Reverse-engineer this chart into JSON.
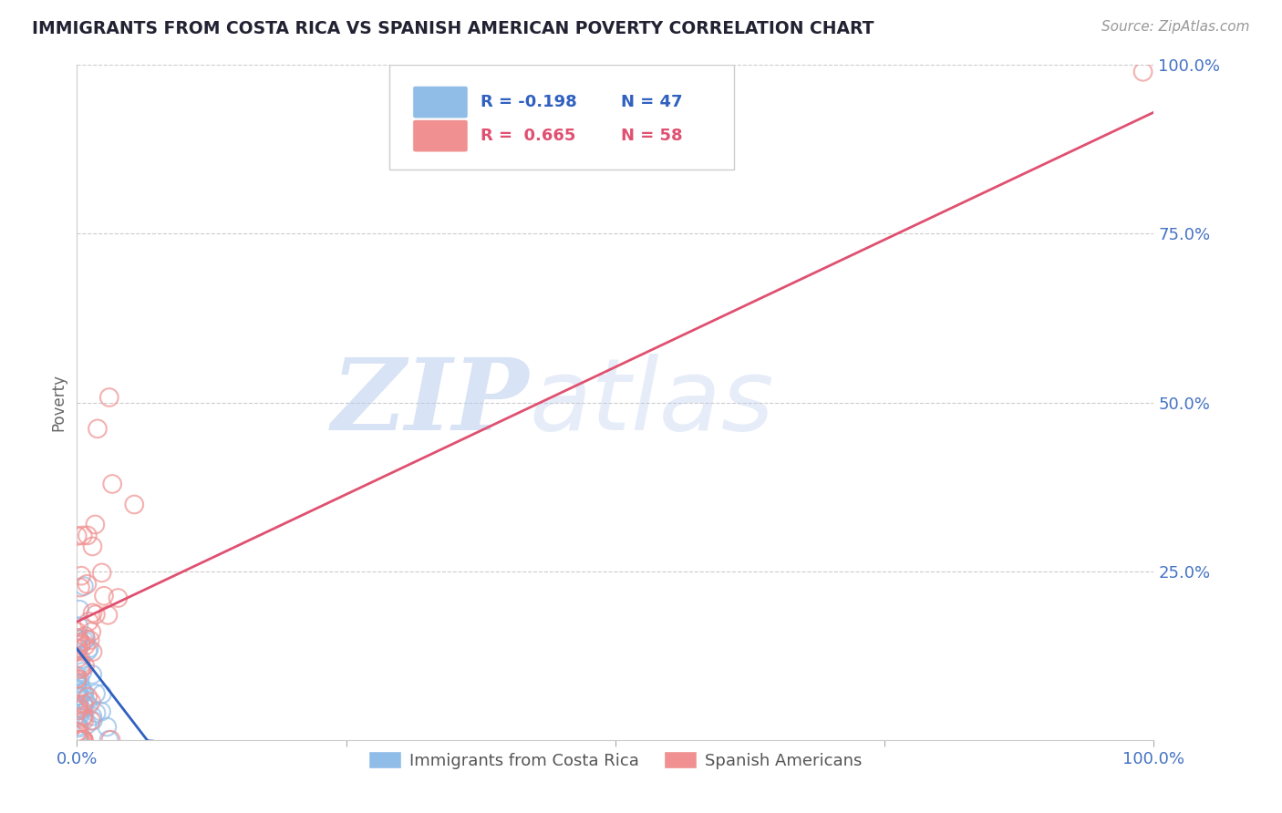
{
  "title": "IMMIGRANTS FROM COSTA RICA VS SPANISH AMERICAN POVERTY CORRELATION CHART",
  "source": "Source: ZipAtlas.com",
  "ylabel": "Poverty",
  "watermark_part1": "ZIP",
  "watermark_part2": "atlas",
  "xlim": [
    0,
    1
  ],
  "ylim": [
    0,
    1
  ],
  "xtick_labels": [
    "0.0%",
    "",
    "",
    "",
    "100.0%"
  ],
  "ytick_labels": [
    "",
    "25.0%",
    "50.0%",
    "75.0%",
    "100.0%"
  ],
  "legend_label1": "Immigrants from Costa Rica",
  "legend_label2": "Spanish Americans",
  "blue_R": -0.198,
  "blue_N": 47,
  "pink_R": 0.665,
  "pink_N": 58,
  "blue_scatter_color": "#90bce8",
  "pink_scatter_color": "#f09090",
  "blue_line_color": "#3060c0",
  "pink_line_color": "#e05070",
  "background_color": "#ffffff",
  "grid_color": "#cccccc",
  "title_color": "#222233",
  "axis_label_color": "#4472c4",
  "watermark_color1": "#b8ccee",
  "watermark_color2": "#b8ccee",
  "pink_line_x0": 0.0,
  "pink_line_y0": 0.175,
  "pink_line_x1": 1.0,
  "pink_line_y1": 0.93,
  "blue_line_x0": 0.0,
  "blue_line_y0": 0.135,
  "blue_line_x1": 0.065,
  "blue_line_y1": 0.0
}
